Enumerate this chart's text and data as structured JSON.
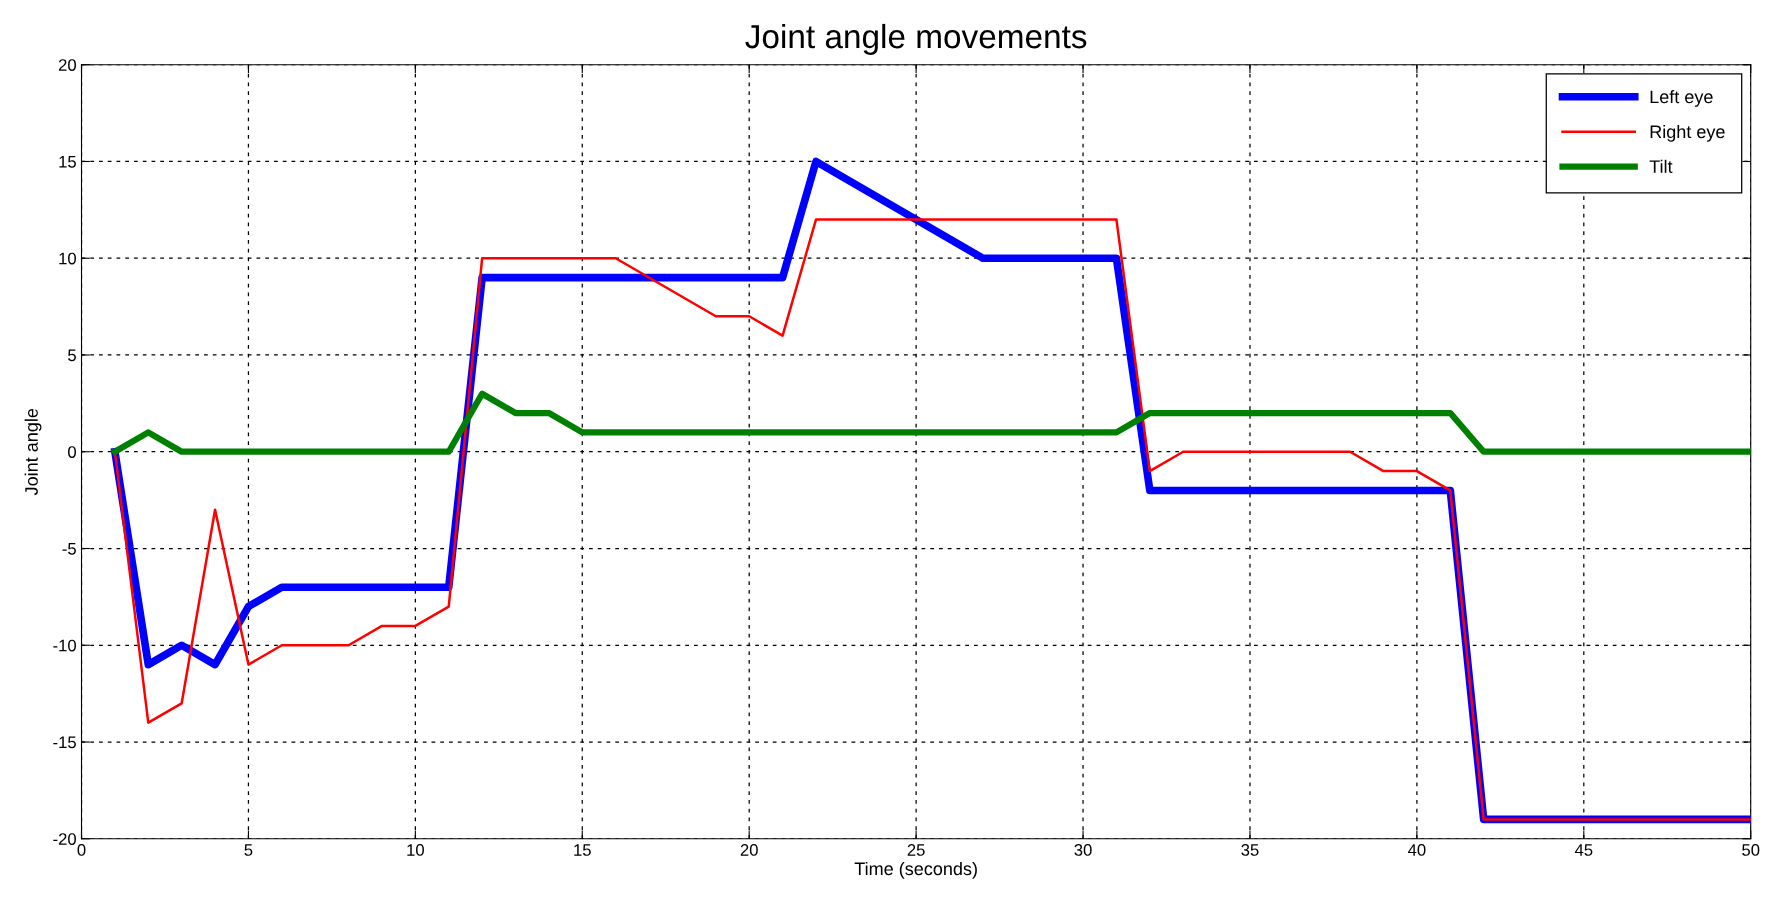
{
  "chart_data": {
    "type": "line",
    "title": "Joint angle movements",
    "xlabel": "Time (seconds)",
    "ylabel": "Joint angle",
    "series": [
      {
        "name": "Left eye",
        "color": "#0000ff",
        "x": [
          1,
          2,
          3,
          4,
          5,
          6,
          11,
          12,
          21,
          22,
          27,
          31,
          32,
          41,
          42,
          50
        ],
        "values": [
          0,
          -11,
          -10,
          -11,
          -8,
          -7,
          -7,
          9,
          9,
          15,
          10,
          10,
          -2,
          -2,
          -19,
          -19
        ]
      },
      {
        "name": "Right eye",
        "color": "#ff0000",
        "x": [
          1,
          2,
          3,
          4,
          5,
          6,
          8,
          9,
          10,
          11,
          12,
          16,
          19,
          20,
          21,
          22,
          31,
          32,
          33,
          38,
          39,
          40,
          41,
          42,
          50
        ],
        "values": [
          0,
          -14,
          -13,
          -3,
          -11,
          -10,
          -10,
          -9,
          -9,
          -8,
          10,
          10,
          7,
          7,
          6,
          12,
          12,
          -1,
          0,
          0,
          -1,
          -1,
          -2,
          -19,
          -19
        ]
      },
      {
        "name": "Tilt",
        "color": "#008000",
        "x": [
          1,
          2,
          3,
          11,
          12,
          13,
          14,
          15,
          31,
          32,
          41,
          42,
          50
        ],
        "values": [
          0,
          1,
          0,
          0,
          3,
          2,
          2,
          1,
          1,
          2,
          2,
          0,
          0
        ]
      }
    ],
    "xlim": [
      0,
      50
    ],
    "xticks": [
      0,
      5,
      10,
      15,
      20,
      25,
      30,
      35,
      40,
      45,
      50
    ],
    "ylim": [
      -20,
      20
    ],
    "yticks": [
      -20,
      -15,
      -10,
      -5,
      0,
      5,
      10,
      15,
      20
    ],
    "grid": true,
    "legend": "top right",
    "line_style": "solid",
    "marker": "none"
  }
}
